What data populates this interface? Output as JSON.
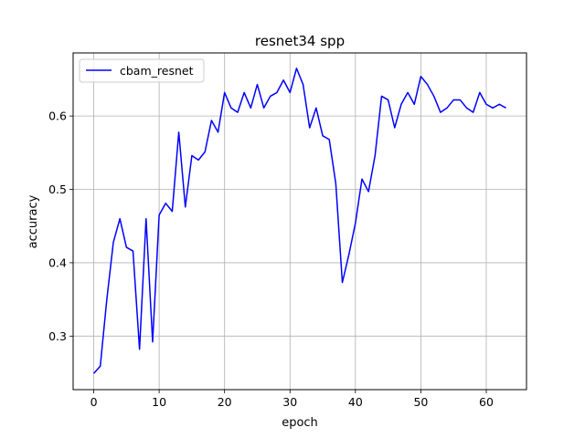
{
  "chart_data": {
    "type": "line",
    "title": "resnet34 spp",
    "xlabel": "epoch",
    "ylabel": "accuracy",
    "xlim": [
      -3.15,
      66.15
    ],
    "ylim": [
      0.227,
      0.686
    ],
    "xticks": [
      0,
      10,
      20,
      30,
      40,
      50,
      60
    ],
    "xtick_labels": [
      "0",
      "10",
      "20",
      "30",
      "40",
      "50",
      "60"
    ],
    "yticks": [
      0.3,
      0.4,
      0.5,
      0.6
    ],
    "ytick_labels": [
      "0.3",
      "0.4",
      "0.5",
      "0.6"
    ],
    "grid": true,
    "legend": {
      "placement": "upper-left"
    },
    "series": [
      {
        "name": "cbam_resnet",
        "color": "#0000ff",
        "x": [
          0,
          1,
          2,
          3,
          4,
          5,
          6,
          7,
          8,
          9,
          10,
          11,
          12,
          13,
          14,
          15,
          16,
          17,
          18,
          19,
          20,
          21,
          22,
          23,
          24,
          25,
          26,
          27,
          28,
          29,
          30,
          31,
          32,
          33,
          34,
          35,
          36,
          37,
          38,
          39,
          40,
          41,
          42,
          43,
          44,
          45,
          46,
          47,
          48,
          49,
          50,
          51,
          52,
          53,
          54,
          55,
          56,
          57,
          58,
          59,
          60,
          61,
          62,
          63
        ],
        "values": [
          0.249,
          0.259,
          0.35,
          0.428,
          0.46,
          0.421,
          0.416,
          0.282,
          0.46,
          0.292,
          0.465,
          0.481,
          0.47,
          0.578,
          0.476,
          0.546,
          0.54,
          0.551,
          0.594,
          0.578,
          0.632,
          0.611,
          0.605,
          0.632,
          0.611,
          0.643,
          0.611,
          0.627,
          0.632,
          0.649,
          0.632,
          0.665,
          0.643,
          0.584,
          0.611,
          0.573,
          0.568,
          0.508,
          0.373,
          0.411,
          0.454,
          0.514,
          0.497,
          0.546,
          0.627,
          0.622,
          0.584,
          0.616,
          0.632,
          0.616,
          0.654,
          0.643,
          0.627,
          0.605,
          0.611,
          0.622,
          0.622,
          0.611,
          0.605,
          0.632,
          0.616,
          0.611,
          0.616,
          0.611
        ]
      }
    ]
  }
}
